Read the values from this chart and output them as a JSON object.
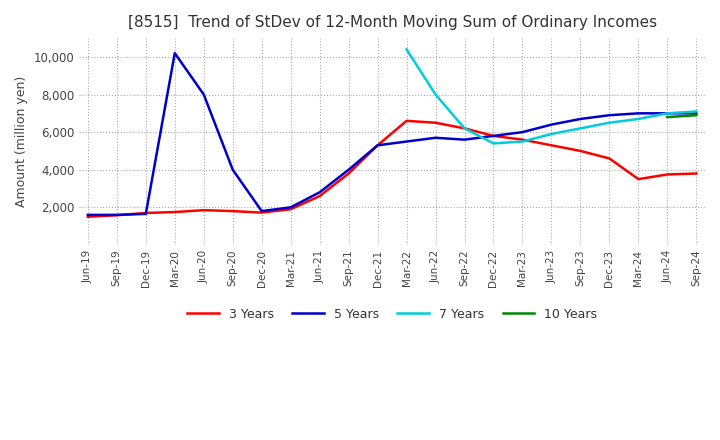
{
  "title": "[8515]  Trend of StDev of 12-Month Moving Sum of Ordinary Incomes",
  "ylabel": "Amount (million yen)",
  "ylim": [
    0,
    11000
  ],
  "yticks": [
    2000,
    4000,
    6000,
    8000,
    10000
  ],
  "background_color": "#ffffff",
  "grid_color": "#aaaaaa",
  "title_fontsize": 11,
  "legend": [
    "3 Years",
    "5 Years",
    "7 Years",
    "10 Years"
  ],
  "line_colors": [
    "#ff0000",
    "#0000cc",
    "#00ccdd",
    "#008800"
  ],
  "x_labels": [
    "Jun-19",
    "Sep-19",
    "Dec-19",
    "Mar-20",
    "Jun-20",
    "Sep-20",
    "Dec-20",
    "Mar-21",
    "Jun-21",
    "Sep-21",
    "Dec-21",
    "Mar-22",
    "Jun-22",
    "Sep-22",
    "Dec-22",
    "Mar-23",
    "Jun-23",
    "Sep-23",
    "Dec-23",
    "Mar-24",
    "Jun-24",
    "Sep-24"
  ],
  "series_3yr": [
    1500,
    1580,
    1700,
    1750,
    1850,
    1800,
    1720,
    1900,
    2600,
    3800,
    5300,
    6600,
    6500,
    6200,
    5800,
    5600,
    5300,
    5000,
    4600,
    3500,
    3750,
    3800
  ],
  "series_5yr": [
    1600,
    1600,
    1650,
    10200,
    8000,
    4000,
    1800,
    2000,
    2800,
    4000,
    5300,
    5500,
    5700,
    5600,
    5800,
    6000,
    6400,
    6700,
    6900,
    7000,
    7000,
    7000
  ],
  "series_7yr": [
    null,
    null,
    null,
    null,
    null,
    null,
    null,
    null,
    null,
    null,
    null,
    10400,
    8000,
    6200,
    5400,
    5500,
    5900,
    6200,
    6500,
    6700,
    7000,
    7100
  ],
  "series_10yr": [
    null,
    null,
    null,
    null,
    null,
    null,
    null,
    null,
    null,
    null,
    null,
    null,
    null,
    null,
    null,
    null,
    null,
    null,
    null,
    null,
    6800,
    6900
  ]
}
